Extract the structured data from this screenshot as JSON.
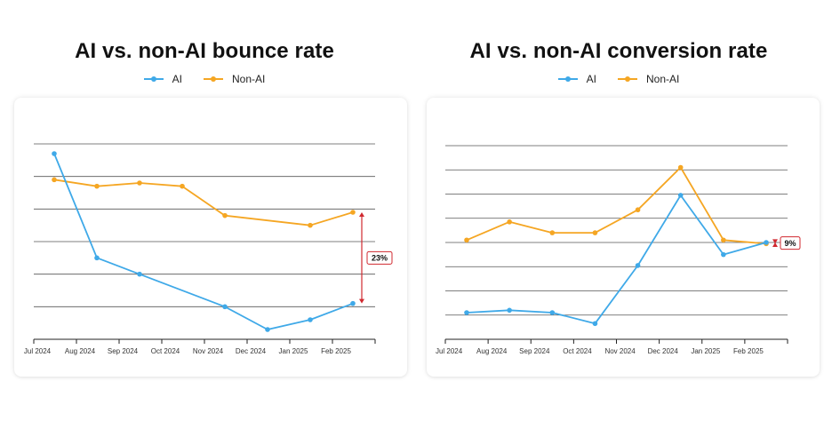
{
  "chart_data": [
    {
      "type": "line",
      "title": "AI vs. non-AI bounce rate",
      "categories": [
        "Jul 2024",
        "Aug 2024",
        "Sep 2024",
        "Oct 2024",
        "Nov 2024",
        "Dec 2024",
        "Jan 2025",
        "Feb 2025"
      ],
      "ylim": [
        0,
        6
      ],
      "grid": true,
      "legend_placement": "top-center",
      "series": [
        {
          "name": "AI",
          "color": "#3fa9e8",
          "values": [
            5.7,
            2.5,
            2.0,
            null,
            1.0,
            0.3,
            0.6,
            1.1
          ]
        },
        {
          "name": "Non-AI",
          "color": "#f5a623",
          "values": [
            4.9,
            4.7,
            4.8,
            4.7,
            3.8,
            null,
            3.5,
            3.9
          ]
        }
      ],
      "annotation": {
        "label": "23%",
        "color": "#d0282f",
        "category": "Feb 2025",
        "from": 3.9,
        "to": 1.1
      }
    },
    {
      "type": "line",
      "title": "AI vs. non-AI conversion rate",
      "categories": [
        "Jul 2024",
        "Aug 2024",
        "Sep 2024",
        "Oct 2024",
        "Nov 2024",
        "Dec 2024",
        "Jan 2025",
        "Feb 2025"
      ],
      "ylim": [
        0,
        8
      ],
      "grid": true,
      "legend_placement": "top-center",
      "series": [
        {
          "name": "AI",
          "color": "#3fa9e8",
          "values": [
            1.1,
            1.2,
            1.1,
            0.65,
            3.05,
            5.95,
            3.5,
            4.0
          ]
        },
        {
          "name": "Non-AI",
          "color": "#f5a623",
          "values": [
            4.1,
            4.85,
            4.4,
            4.4,
            5.35,
            7.1,
            4.1,
            3.95
          ]
        }
      ],
      "annotation": {
        "label": "9%",
        "color": "#d0282f",
        "category": "Feb 2025",
        "from": 3.95,
        "to": 4.0
      }
    }
  ]
}
